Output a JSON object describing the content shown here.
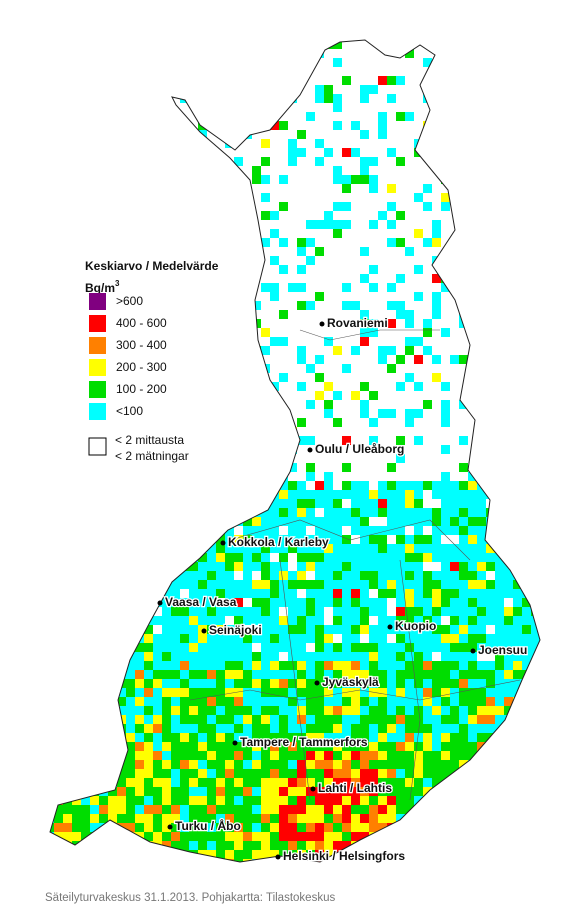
{
  "legend": {
    "title": "Keskiarvo / Medelvärde",
    "unit": "Bq/m",
    "unit_sup": "3",
    "items": [
      {
        "label": ">600",
        "color": "#800080"
      },
      {
        "label": "400 - 600",
        "color": "#ff0000"
      },
      {
        "label": "300 - 400",
        "color": "#ff8000"
      },
      {
        "label": "200 - 300",
        "color": "#ffff00"
      },
      {
        "label": "100 - 200",
        "color": "#00dd00"
      },
      {
        "label": "<100",
        "color": "#00ffff"
      }
    ],
    "note": [
      "< 2 mittausta",
      "< 2 mätningar"
    ]
  },
  "cities": [
    {
      "label": "Rovaniemi"
    },
    {
      "label": "Oulu / Uleåborg"
    },
    {
      "label": "Kokkola / Karleby"
    },
    {
      "label": "Vaasa / Vasa"
    },
    {
      "label": "Seinäjoki"
    },
    {
      "label": "Kuopio"
    },
    {
      "label": "Joensuu"
    },
    {
      "label": "Jyväskylä"
    },
    {
      "label": "Tampere / Tammerfors"
    },
    {
      "label": "Lahti / Lahtis"
    },
    {
      "label": "Turku / Åbo"
    },
    {
      "label": "Helsinki / Helsingfors"
    }
  ],
  "credit": "Säteilyturvakeskus 31.1.2013. Pohjakartta: Tilastokeskus"
}
